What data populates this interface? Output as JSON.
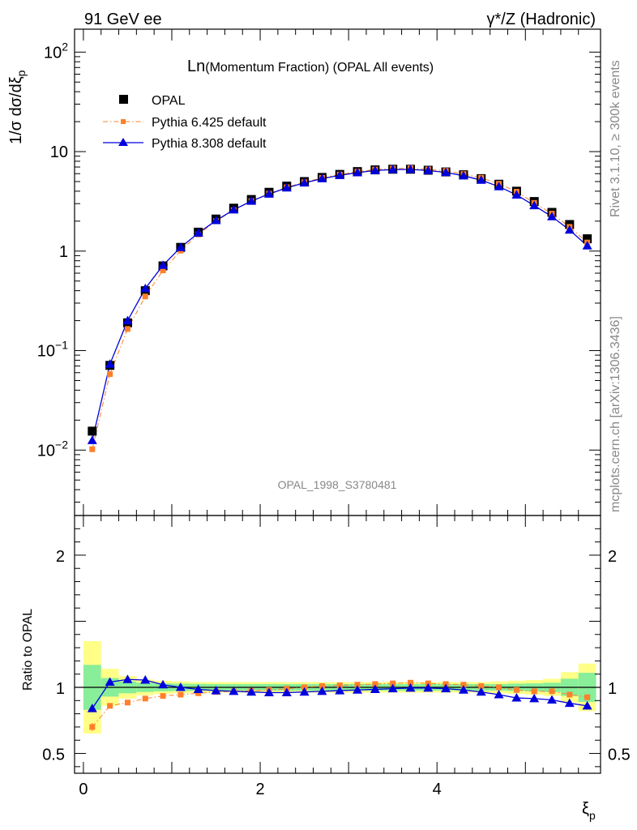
{
  "header": {
    "left": "91 GeV ee",
    "right": "γ*/Z (Hadronic)"
  },
  "side": {
    "rivet": "Rivet 3.1.10, ≥ 300k events",
    "mcplots": "mcplots.cern.ch [arXiv:1306.3436]"
  },
  "chart_data": [
    {
      "type": "scatter",
      "title_main": "Ln",
      "title_rest": "(Momentum Fraction) (OPAL All events)",
      "watermark": "OPAL_1998_S3780481",
      "ylabel": "1/σ dσ/dξ",
      "ylabel_sub": "p",
      "yscale": "log",
      "xlim": [
        -0.1,
        5.85
      ],
      "ylim": [
        0.0022,
        170
      ],
      "yticks": [
        {
          "value": 0.01,
          "base": "10",
          "exp": "−2"
        },
        {
          "value": 0.1,
          "base": "10",
          "exp": "−1"
        },
        {
          "value": 1,
          "base": "1",
          "exp": ""
        },
        {
          "value": 10,
          "base": "10",
          "exp": ""
        },
        {
          "value": 100,
          "base": "10",
          "exp": "2"
        }
      ],
      "legend_position": "top-left",
      "x": [
        0.1,
        0.3,
        0.5,
        0.7,
        0.9,
        1.1,
        1.3,
        1.5,
        1.7,
        1.9,
        2.1,
        2.3,
        2.5,
        2.7,
        2.9,
        3.1,
        3.3,
        3.5,
        3.7,
        3.9,
        4.1,
        4.3,
        4.5,
        4.7,
        4.9,
        5.1,
        5.3,
        5.5,
        5.7
      ],
      "series": [
        {
          "name": "OPAL",
          "color": "#000000",
          "marker": "square",
          "values": [
            0.0155,
            0.071,
            0.19,
            0.4,
            0.71,
            1.09,
            1.55,
            2.1,
            2.7,
            3.3,
            3.9,
            4.5,
            5.0,
            5.5,
            5.9,
            6.3,
            6.55,
            6.65,
            6.65,
            6.5,
            6.25,
            5.85,
            5.35,
            4.7,
            4.0,
            3.15,
            2.45,
            1.85,
            1.33
          ]
        },
        {
          "name": "Pythia 6.425 default",
          "color": "#ff7f2a",
          "marker": "square-small",
          "dash": "dashdot",
          "values": [
            0.0102,
            0.058,
            0.165,
            0.35,
            0.64,
            1.01,
            1.47,
            2.0,
            2.58,
            3.18,
            3.78,
            4.38,
            4.92,
            5.45,
            5.88,
            6.28,
            6.6,
            6.75,
            6.8,
            6.62,
            6.4,
            5.95,
            5.45,
            4.75,
            3.95,
            3.05,
            2.38,
            1.75,
            1.22
          ]
        },
        {
          "name": "Pythia 8.308 default",
          "color": "#0000dd",
          "marker": "triangle",
          "values": [
            0.0125,
            0.073,
            0.2,
            0.42,
            0.72,
            1.09,
            1.52,
            2.03,
            2.6,
            3.18,
            3.75,
            4.32,
            4.85,
            5.35,
            5.77,
            6.15,
            6.45,
            6.6,
            6.62,
            6.45,
            6.17,
            5.72,
            5.16,
            4.45,
            3.67,
            2.87,
            2.22,
            1.63,
            1.13
          ]
        }
      ]
    },
    {
      "type": "scatter",
      "ylabel": "Ratio to OPAL",
      "xlabel": "ξ",
      "xlabel_sub": "p",
      "xlim": [
        -0.1,
        5.85
      ],
      "ylim": [
        0.35,
        2.3
      ],
      "xticks": [
        0,
        2,
        4
      ],
      "yticks": [
        0.5,
        1,
        2
      ],
      "reference": 1,
      "x": [
        0.1,
        0.3,
        0.5,
        0.7,
        0.9,
        1.1,
        1.3,
        1.5,
        1.7,
        1.9,
        2.1,
        2.3,
        2.5,
        2.7,
        2.9,
        3.1,
        3.3,
        3.5,
        3.7,
        3.9,
        4.1,
        4.3,
        4.5,
        4.7,
        4.9,
        5.1,
        5.3,
        5.5,
        5.7
      ],
      "band_inner": [
        0.17,
        0.07,
        0.045,
        0.035,
        0.03,
        0.028,
        0.026,
        0.025,
        0.025,
        0.025,
        0.025,
        0.025,
        0.025,
        0.025,
        0.025,
        0.025,
        0.025,
        0.025,
        0.025,
        0.025,
        0.025,
        0.025,
        0.025,
        0.025,
        0.028,
        0.03,
        0.035,
        0.065,
        0.11
      ],
      "band_outer": [
        0.35,
        0.14,
        0.085,
        0.06,
        0.05,
        0.045,
        0.04,
        0.04,
        0.04,
        0.04,
        0.04,
        0.04,
        0.04,
        0.04,
        0.04,
        0.04,
        0.04,
        0.04,
        0.04,
        0.04,
        0.04,
        0.04,
        0.04,
        0.045,
        0.05,
        0.055,
        0.065,
        0.115,
        0.18
      ],
      "series": [
        {
          "name": "Pythia 6.425 default",
          "color": "#ff7f2a",
          "marker": "square-small",
          "dash": "dashdot",
          "values": [
            0.7,
            0.86,
            0.885,
            0.915,
            0.935,
            0.945,
            0.955,
            0.965,
            0.97,
            0.975,
            0.98,
            0.99,
            1.0,
            1.01,
            1.015,
            1.02,
            1.025,
            1.03,
            1.035,
            1.03,
            1.025,
            1.02,
            1.01,
            1.0,
            0.98,
            0.97,
            0.97,
            0.945,
            0.925
          ]
        },
        {
          "name": "Pythia 8.308 default",
          "color": "#0000dd",
          "marker": "triangle",
          "values": [
            0.84,
            1.04,
            1.06,
            1.055,
            1.02,
            1.0,
            0.985,
            0.975,
            0.97,
            0.965,
            0.96,
            0.96,
            0.965,
            0.97,
            0.975,
            0.98,
            0.985,
            0.99,
            0.995,
            0.995,
            0.99,
            0.98,
            0.965,
            0.945,
            0.92,
            0.915,
            0.905,
            0.88,
            0.86
          ]
        }
      ]
    }
  ]
}
